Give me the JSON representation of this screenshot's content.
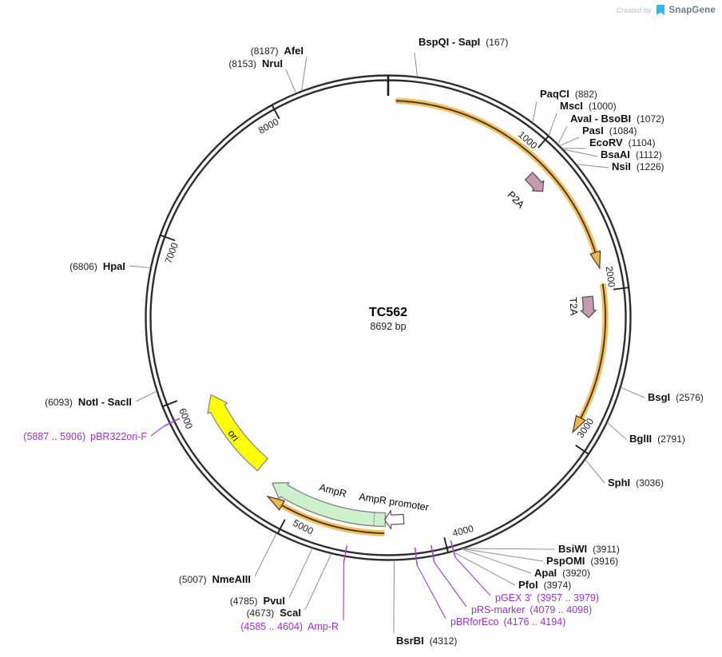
{
  "branding": {
    "created_by": "Created by",
    "name": "SnapGene"
  },
  "title": {
    "name": "TC562",
    "size": "8692 bp",
    "length": 8692
  },
  "ticks": [
    "1000",
    "2000",
    "3000",
    "4000",
    "5000",
    "6000",
    "7000",
    "8000"
  ],
  "sites": [
    {
      "name": "BspQI - SapI",
      "pos": "(167)"
    },
    {
      "name": "PaqCI",
      "pos": "(882)"
    },
    {
      "name": "MscI",
      "pos": "(1000)"
    },
    {
      "name": "AvaI - BsoBI",
      "pos": "(1072)"
    },
    {
      "name": "PasI",
      "pos": "(1084)"
    },
    {
      "name": "EcoRV",
      "pos": "(1104)"
    },
    {
      "name": "BsaAI",
      "pos": "(1112)"
    },
    {
      "name": "NsiI",
      "pos": "(1226)"
    },
    {
      "name": "BsgI",
      "pos": "(2576)"
    },
    {
      "name": "BglII",
      "pos": "(2791)"
    },
    {
      "name": "SphI",
      "pos": "(3036)"
    },
    {
      "name": "BsiWI",
      "pos": "(3911)"
    },
    {
      "name": "PspOMI",
      "pos": "(3916)"
    },
    {
      "name": "ApaI",
      "pos": "(3920)"
    },
    {
      "name": "PfoI",
      "pos": "(3974)"
    },
    {
      "name": "BsrBI",
      "pos": "(4312)"
    },
    {
      "name": "ScaI",
      "pos": "(4673)"
    },
    {
      "name": "PvuI",
      "pos": "(4785)"
    },
    {
      "name": "NmeAIII",
      "pos": "(5007)"
    },
    {
      "name": "NotI - SacII",
      "pos": "(6093)"
    },
    {
      "name": "HpaI",
      "pos": "(6806)"
    },
    {
      "name": "AfeI",
      "pos": "(8187)"
    },
    {
      "name": "NruI",
      "pos": "(8153)"
    }
  ],
  "primers": [
    {
      "name": "pGEX 3'",
      "range": "(3957 .. 3979)"
    },
    {
      "name": "pRS-marker",
      "range": "(4079 .. 4098)"
    },
    {
      "name": "pBRforEco",
      "range": "(4176 .. 4194)"
    },
    {
      "name": "Amp-R",
      "range": "(4585 .. 4604)"
    },
    {
      "name": "pBR322ori-F",
      "range": "(5887 .. 5906)"
    }
  ],
  "features": [
    {
      "label": "P2A"
    },
    {
      "label": "T2A"
    },
    {
      "label": "ori"
    },
    {
      "label": "AmpR"
    },
    {
      "label": "AmpR promoter"
    }
  ],
  "colors": {
    "backbone": "#2e2e2e",
    "orf_band": "#f1be60",
    "orf_line": "#45341a",
    "orf_head": "#edb84f",
    "misc_feature": "#c79ab1",
    "misc_outline": "#555555",
    "ori_fill": "#ffff00",
    "ampr_fill": "#cdf0cd",
    "promoter_fill": "#ffffff",
    "feature_outline": "#7f7f7f",
    "primer_purple": "#9933cc",
    "tick_color": "#1c1c1c",
    "brand_blue": "#35b7ea"
  }
}
